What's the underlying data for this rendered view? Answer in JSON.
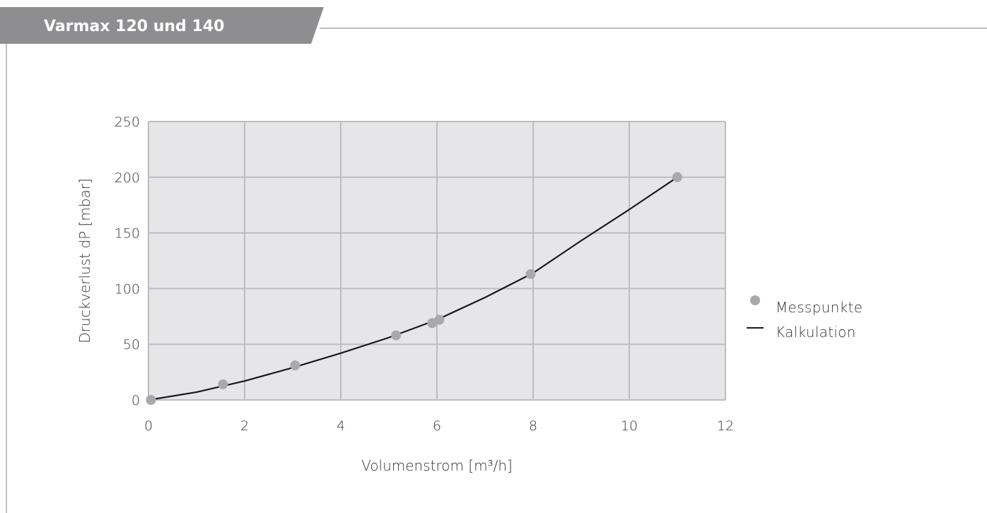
{
  "header": {
    "title": "Varmax 120 und 140"
  },
  "chart_data": {
    "type": "line",
    "title": "",
    "xlabel": "Volumenstrom  [m³/h]",
    "ylabel": "Druckverlust dP  [mbar]",
    "xlim": [
      0,
      12
    ],
    "ylim": [
      0,
      250
    ],
    "x_ticks": [
      0,
      2,
      4,
      6,
      8,
      10,
      12
    ],
    "y_ticks": [
      0,
      50,
      100,
      150,
      200,
      250
    ],
    "x_tick_labels": [
      "0",
      "2",
      "4",
      "6",
      "8",
      "10",
      "12"
    ],
    "y_tick_labels": [
      "0",
      "50",
      "100",
      "150",
      "200",
      "250"
    ],
    "grid": true,
    "legend_position": "right",
    "series": [
      {
        "name": "Messpunkte",
        "kind": "scatter",
        "color": "#a9a9ab",
        "x": [
          0.05,
          1.55,
          3.05,
          5.15,
          5.9,
          6.05,
          7.95,
          11.0
        ],
        "y": [
          0,
          14,
          31,
          58,
          69,
          72,
          113,
          200
        ]
      },
      {
        "name": "Kalkulation",
        "kind": "line",
        "color": "#1a1a1a",
        "x": [
          0,
          1,
          2,
          3,
          4,
          5,
          6,
          7,
          8,
          9,
          10,
          11
        ],
        "y": [
          0,
          7,
          17,
          29,
          42,
          56,
          72,
          92,
          114,
          143,
          171,
          200
        ]
      }
    ]
  },
  "colors": {
    "header_bg": "#8e8e90",
    "plot_bg": "#e6e6e8",
    "grid": "#bdbdbf",
    "frame": "#bfbfc1",
    "rule": "#bfbfc1"
  }
}
